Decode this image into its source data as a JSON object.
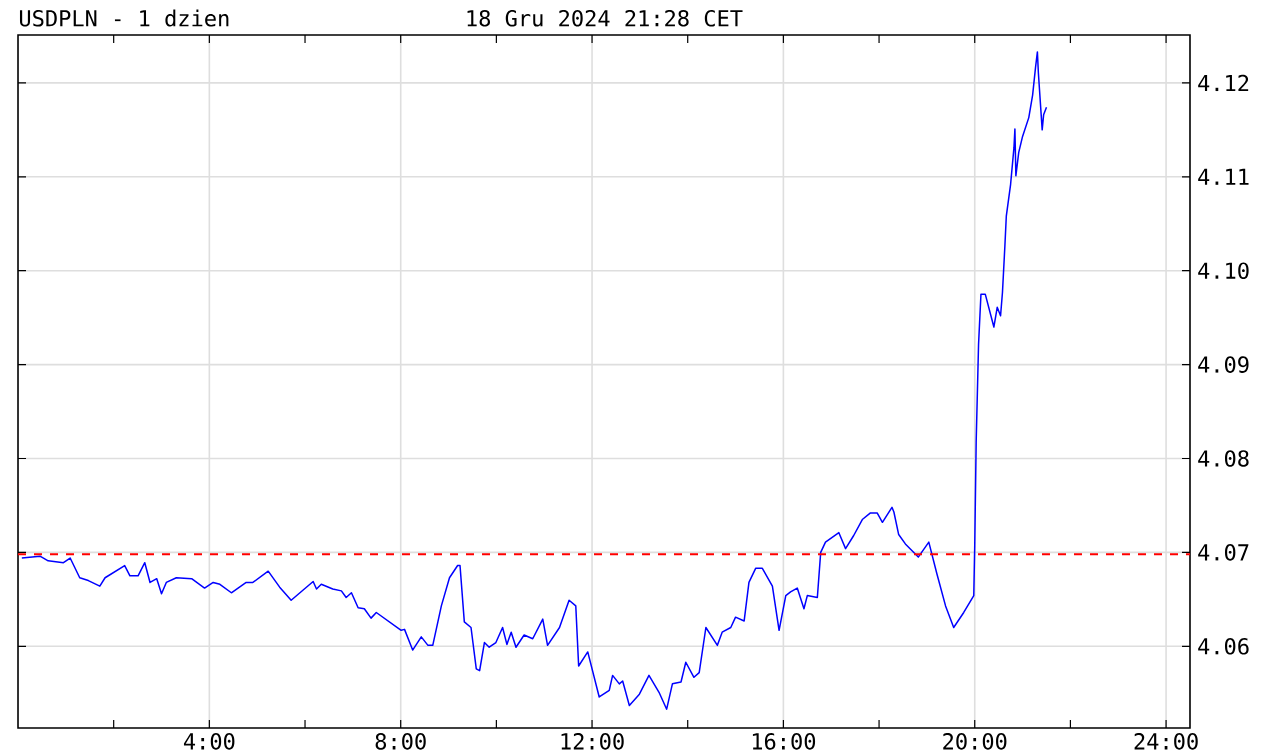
{
  "chart_data": {
    "type": "line",
    "title": "USDPLN - 1 dzien",
    "subtitle": "18 Gru 2024 21:28 CET",
    "x": [
      0.08,
      0.46,
      0.63,
      0.95,
      1.09,
      1.29,
      1.47,
      1.71,
      1.82,
      2.23,
      2.34,
      2.51,
      2.65,
      2.76,
      2.9,
      3.0,
      3.1,
      3.31,
      3.63,
      3.9,
      4.08,
      4.22,
      4.46,
      4.77,
      4.91,
      5.23,
      5.47,
      5.71,
      6.17,
      6.24,
      6.34,
      6.58,
      6.76,
      6.86,
      6.97,
      7.11,
      7.24,
      7.38,
      7.49,
      8.01,
      8.08,
      8.25,
      8.43,
      8.57,
      8.67,
      8.85,
      9.02,
      9.19,
      9.24,
      9.33,
      9.47,
      9.58,
      9.65,
      9.75,
      9.85,
      9.99,
      10.13,
      10.22,
      10.31,
      10.41,
      10.58,
      10.76,
      10.97,
      11.07,
      11.32,
      11.52,
      11.66,
      11.72,
      11.91,
      12.15,
      12.36,
      12.43,
      12.57,
      12.64,
      12.78,
      12.99,
      13.19,
      13.4,
      13.56,
      13.68,
      13.86,
      13.96,
      14.13,
      14.24,
      14.38,
      14.62,
      14.72,
      14.9,
      15.0,
      15.18,
      15.28,
      15.42,
      15.56,
      15.77,
      15.91,
      16.05,
      16.15,
      16.29,
      16.43,
      16.5,
      16.71,
      16.78,
      16.88,
      17.16,
      17.3,
      17.47,
      17.65,
      17.82,
      17.96,
      18.07,
      18.27,
      18.31,
      18.41,
      18.55,
      18.82,
      19.04,
      19.21,
      19.39,
      19.56,
      19.77,
      19.98,
      20.0,
      20.03,
      20.08,
      20.13,
      20.22,
      20.4,
      20.47,
      20.54,
      20.58,
      20.63,
      20.66,
      20.75,
      20.82,
      20.84,
      20.86,
      20.92,
      21.0,
      21.13,
      21.21,
      21.27,
      21.31,
      21.33,
      21.41,
      21.44,
      21.5
    ],
    "series": [
      {
        "color": "#0000ff",
        "values": [
          4.0694,
          4.0696,
          4.0691,
          4.0689,
          4.0694,
          4.0673,
          4.067,
          4.0664,
          4.0673,
          4.0686,
          4.0675,
          4.0675,
          4.0689,
          4.0668,
          4.0672,
          4.0656,
          4.0668,
          4.0673,
          4.0672,
          4.0662,
          4.0668,
          4.0666,
          4.0657,
          4.0668,
          4.0668,
          4.068,
          4.0663,
          4.0649,
          4.0669,
          4.0661,
          4.0666,
          4.0661,
          4.0659,
          4.0652,
          4.0657,
          4.0641,
          4.064,
          4.063,
          4.0636,
          4.0617,
          4.0618,
          4.0596,
          4.061,
          4.0601,
          4.0601,
          4.0643,
          4.0673,
          4.0686,
          4.0686,
          4.0626,
          4.062,
          4.0576,
          4.0574,
          4.0604,
          4.0599,
          4.0604,
          4.062,
          4.0602,
          4.0615,
          4.0599,
          4.0612,
          4.0608,
          4.0629,
          4.0601,
          4.062,
          4.0649,
          4.0643,
          4.0579,
          4.0594,
          4.0546,
          4.0553,
          4.0569,
          4.056,
          4.0563,
          4.0537,
          4.0549,
          4.0569,
          4.0551,
          4.0533,
          4.056,
          4.0562,
          4.0583,
          4.0567,
          4.0572,
          4.062,
          4.0601,
          4.0615,
          4.062,
          4.0631,
          4.0627,
          4.0668,
          4.0683,
          4.0683,
          4.0664,
          4.0617,
          4.0654,
          4.0658,
          4.0662,
          4.064,
          4.0654,
          4.0652,
          4.07,
          4.0711,
          4.0721,
          4.0704,
          4.0718,
          4.0735,
          4.0742,
          4.0742,
          4.0732,
          4.0748,
          4.0743,
          4.0719,
          4.0709,
          4.0695,
          4.0711,
          4.0677,
          4.0643,
          4.062,
          4.0636,
          4.0654,
          4.0707,
          4.0817,
          4.0922,
          4.0975,
          4.0975,
          4.094,
          4.0961,
          4.0952,
          4.0977,
          4.1026,
          4.1058,
          4.1092,
          4.1131,
          4.1151,
          4.1101,
          4.1126,
          4.1143,
          4.1163,
          4.1187,
          4.1216,
          4.1233,
          4.1211,
          4.115,
          4.1166,
          4.1174
        ]
      }
    ],
    "xlim": [
      0,
      24.5
    ],
    "ylim": [
      4.0513,
      4.1251
    ],
    "xticks": [
      {
        "value": 2,
        "label": null
      },
      {
        "value": 4,
        "label": "4:00"
      },
      {
        "value": 6,
        "label": null
      },
      {
        "value": 8,
        "label": "8:00"
      },
      {
        "value": 10,
        "label": null
      },
      {
        "value": 12,
        "label": "12:00"
      },
      {
        "value": 14,
        "label": null
      },
      {
        "value": 16,
        "label": "16:00"
      },
      {
        "value": 18,
        "label": null
      },
      {
        "value": 20,
        "label": "20:00"
      },
      {
        "value": 22,
        "label": null
      },
      {
        "value": 24,
        "label": "24:00"
      }
    ],
    "yticks": [
      {
        "value": 4.06,
        "label": "4.06"
      },
      {
        "value": 4.07,
        "label": "4.07"
      },
      {
        "value": 4.08,
        "label": "4.08"
      },
      {
        "value": 4.09,
        "label": "4.09"
      },
      {
        "value": 4.1,
        "label": "4.10"
      },
      {
        "value": 4.11,
        "label": "4.11"
      },
      {
        "value": 4.12,
        "label": "4.12"
      }
    ],
    "grid": true,
    "ref_lines": [
      {
        "axis": "y",
        "value": 4.0698,
        "color": "#ff0000",
        "line_style": "dashed"
      }
    ]
  }
}
